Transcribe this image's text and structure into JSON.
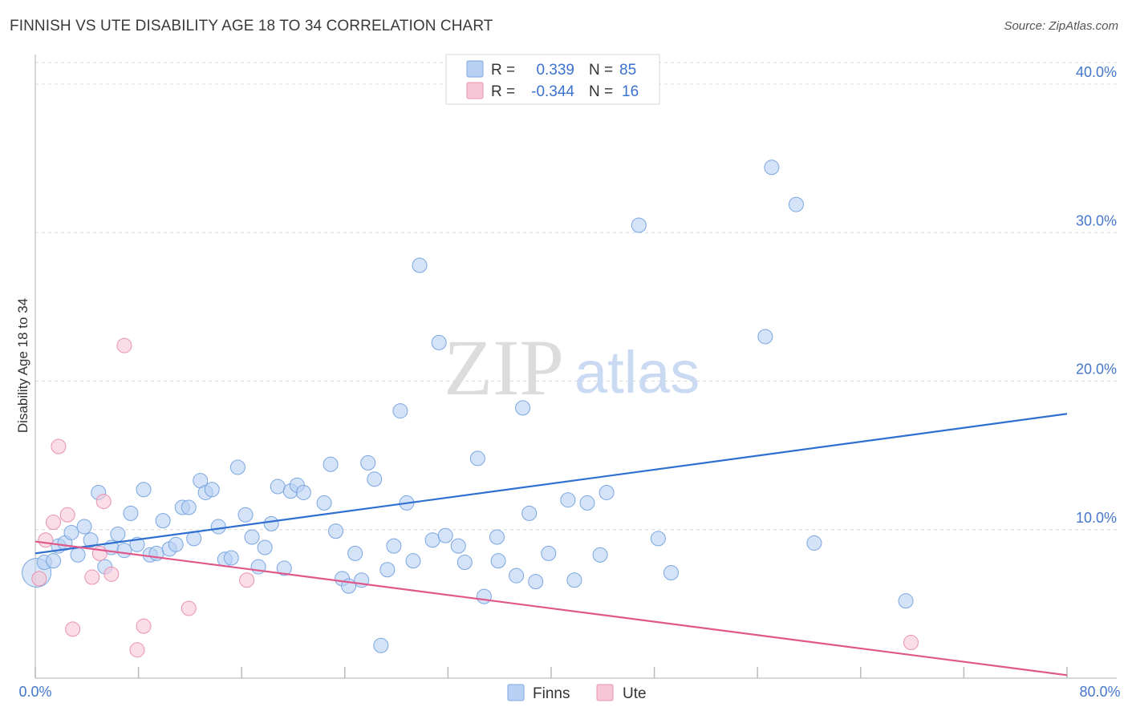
{
  "header": {
    "title": "FINNISH VS UTE DISABILITY AGE 18 TO 34 CORRELATION CHART",
    "source": "Source: ZipAtlas.com"
  },
  "watermark": {
    "zip": "ZIP",
    "atlas": "atlas"
  },
  "colors": {
    "finns_fill": "#b8d1f3",
    "finns_stroke": "#7aa6e0",
    "finns_line": "#2f6fd0",
    "ute_fill": "#f7c6d6",
    "ute_stroke": "#e892b0",
    "ute_line": "#e0588a",
    "grid": "#d8d8d8",
    "axis_text": "#4477cc"
  },
  "legend_top": {
    "rows": [
      {
        "r_label": "R =",
        "r_value": "0.339",
        "n_label": "N =",
        "n_value": "85"
      },
      {
        "r_label": "R =",
        "r_value": "-0.344",
        "n_label": "N =",
        "n_value": "16"
      }
    ]
  },
  "legend_bottom": {
    "items": [
      "Finns",
      "Ute"
    ]
  },
  "chart_data": {
    "type": "scatter",
    "title": "FINNISH VS UTE DISABILITY AGE 18 TO 34 CORRELATION CHART",
    "xlabel": "",
    "ylabel": "Disability Age 18 to 34",
    "xlim": [
      0,
      80
    ],
    "ylim": [
      0,
      42
    ],
    "x_tick_labels": [
      "0.0%",
      "80.0%"
    ],
    "y_ticks": [
      10,
      20,
      30,
      40
    ],
    "y_tick_labels": [
      "10.0%",
      "20.0%",
      "30.0%",
      "40.0%"
    ],
    "grid": true,
    "legend_position": "top-center",
    "series": [
      {
        "name": "Finns",
        "r": 0.339,
        "n": 85,
        "trend": [
          [
            0,
            8.4
          ],
          [
            80,
            17.8
          ]
        ],
        "points": [
          [
            0.1,
            7.1
          ],
          [
            0.7,
            7.8
          ],
          [
            1.4,
            7.9
          ],
          [
            1.8,
            8.9
          ],
          [
            2.3,
            9.1
          ],
          [
            2.8,
            9.8
          ],
          [
            3.3,
            8.3
          ],
          [
            3.8,
            10.2
          ],
          [
            4.3,
            9.3
          ],
          [
            4.9,
            12.5
          ],
          [
            5.4,
            7.5
          ],
          [
            5.9,
            8.8
          ],
          [
            6.4,
            9.7
          ],
          [
            6.9,
            8.6
          ],
          [
            7.4,
            11.1
          ],
          [
            7.9,
            9.0
          ],
          [
            8.4,
            12.7
          ],
          [
            8.9,
            8.3
          ],
          [
            9.4,
            8.4
          ],
          [
            9.9,
            10.6
          ],
          [
            10.4,
            8.7
          ],
          [
            10.9,
            9.0
          ],
          [
            11.4,
            11.5
          ],
          [
            11.9,
            11.5
          ],
          [
            12.3,
            9.4
          ],
          [
            12.8,
            13.3
          ],
          [
            13.2,
            12.5
          ],
          [
            13.7,
            12.7
          ],
          [
            14.2,
            10.2
          ],
          [
            14.7,
            8.0
          ],
          [
            15.2,
            8.1
          ],
          [
            15.7,
            14.2
          ],
          [
            16.3,
            11.0
          ],
          [
            16.8,
            9.5
          ],
          [
            17.3,
            7.5
          ],
          [
            17.8,
            8.8
          ],
          [
            18.3,
            10.4
          ],
          [
            18.8,
            12.9
          ],
          [
            19.3,
            7.4
          ],
          [
            19.8,
            12.6
          ],
          [
            20.3,
            13.0
          ],
          [
            20.8,
            12.5
          ],
          [
            22.4,
            11.8
          ],
          [
            22.9,
            14.4
          ],
          [
            23.3,
            9.9
          ],
          [
            23.8,
            6.7
          ],
          [
            24.3,
            6.2
          ],
          [
            24.8,
            8.4
          ],
          [
            25.3,
            6.6
          ],
          [
            25.8,
            14.5
          ],
          [
            26.3,
            13.4
          ],
          [
            26.8,
            2.2
          ],
          [
            27.3,
            7.3
          ],
          [
            27.8,
            8.9
          ],
          [
            28.3,
            18.0
          ],
          [
            28.8,
            11.8
          ],
          [
            29.3,
            7.9
          ],
          [
            29.8,
            27.8
          ],
          [
            30.8,
            9.3
          ],
          [
            31.3,
            22.6
          ],
          [
            31.8,
            9.6
          ],
          [
            32.8,
            8.9
          ],
          [
            33.3,
            7.8
          ],
          [
            34.3,
            14.8
          ],
          [
            34.8,
            5.5
          ],
          [
            35.8,
            9.5
          ],
          [
            35.9,
            7.9
          ],
          [
            37.3,
            6.9
          ],
          [
            37.8,
            18.2
          ],
          [
            38.3,
            11.1
          ],
          [
            38.8,
            6.5
          ],
          [
            39.8,
            8.4
          ],
          [
            41.3,
            12.0
          ],
          [
            41.8,
            6.6
          ],
          [
            42.8,
            11.8
          ],
          [
            43.8,
            8.3
          ],
          [
            44.3,
            12.5
          ],
          [
            46.8,
            30.5
          ],
          [
            48.3,
            9.4
          ],
          [
            49.3,
            7.1
          ],
          [
            56.6,
            23.0
          ],
          [
            57.1,
            34.4
          ],
          [
            59.0,
            31.9
          ],
          [
            60.4,
            9.1
          ],
          [
            67.5,
            5.2
          ]
        ]
      },
      {
        "name": "Ute",
        "r": -0.344,
        "n": 16,
        "trend": [
          [
            0,
            9.2
          ],
          [
            80,
            0.2
          ]
        ],
        "points": [
          [
            0.3,
            6.7
          ],
          [
            0.8,
            9.3
          ],
          [
            1.4,
            10.5
          ],
          [
            1.8,
            15.6
          ],
          [
            2.5,
            11.0
          ],
          [
            2.9,
            3.3
          ],
          [
            4.4,
            6.8
          ],
          [
            5.0,
            8.4
          ],
          [
            5.3,
            11.9
          ],
          [
            5.9,
            7.0
          ],
          [
            6.9,
            22.4
          ],
          [
            7.9,
            1.9
          ],
          [
            8.4,
            3.5
          ],
          [
            11.9,
            4.7
          ],
          [
            16.4,
            6.6
          ],
          [
            67.9,
            2.4
          ]
        ]
      }
    ]
  }
}
